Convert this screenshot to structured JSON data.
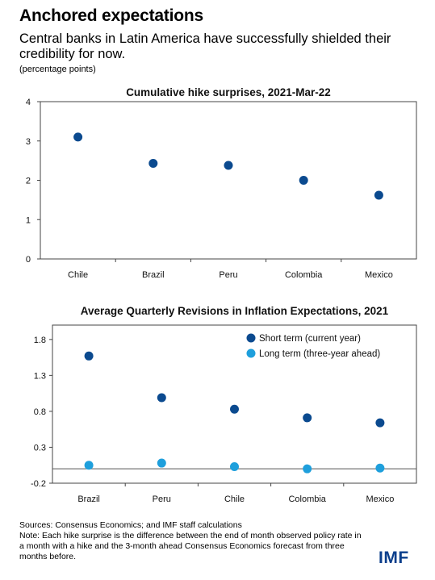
{
  "header": {
    "title": "Anchored expectations",
    "subtitle": "Central banks in Latin America have successfully shielded their credibility for now.",
    "units": "(percentage points)"
  },
  "colors": {
    "dark_blue": "#0b4a8f",
    "light_blue": "#1e9fdc",
    "axis": "#444444",
    "brand": "#0b3f8c"
  },
  "chart_data": [
    {
      "type": "scatter",
      "title": "Cumulative hike surprises, 2021-Mar-22",
      "categories": [
        "Chile",
        "Brazil",
        "Peru",
        "Colombia",
        "Mexico"
      ],
      "series": [
        {
          "values": [
            3.1,
            2.43,
            2.38,
            2.0,
            1.62
          ],
          "color": "#0b4a8f"
        }
      ],
      "ylim": [
        0,
        4
      ],
      "yticks": [
        "0",
        "1",
        "2",
        "3",
        "4"
      ],
      "ytick_values": [
        0,
        1,
        2,
        3,
        4
      ],
      "grid": false,
      "legend": "none"
    },
    {
      "type": "scatter",
      "title": "Average Quarterly Revisions in Inflation Expectations, 2021",
      "categories": [
        "Brazil",
        "Peru",
        "Chile",
        "Colombia",
        "Mexico"
      ],
      "series": [
        {
          "name": "Short term (current year)",
          "values": [
            1.57,
            0.99,
            0.83,
            0.71,
            0.64
          ],
          "color": "#0b4a8f"
        },
        {
          "name": "Long term (three-year ahead)",
          "values": [
            0.05,
            0.08,
            0.03,
            0.0,
            0.01
          ],
          "color": "#1e9fdc"
        }
      ],
      "ylim": [
        -0.2,
        2.0
      ],
      "yticks": [
        "-0.2",
        "0.3",
        "0.8",
        "1.3",
        "1.8"
      ],
      "ytick_values": [
        -0.2,
        0.3,
        0.8,
        1.3,
        1.8
      ],
      "zero_line": true,
      "grid": false,
      "legend": "top-right"
    }
  ],
  "footer": {
    "sources": "Sources: Consensus Economics; and IMF staff calculations",
    "note": "Note: Each hike surprise is the difference between the end of month observed policy rate in a month with a hike and the 3-month ahead Consensus Economics forecast from three months before."
  },
  "logo": {
    "text": "IMF"
  }
}
